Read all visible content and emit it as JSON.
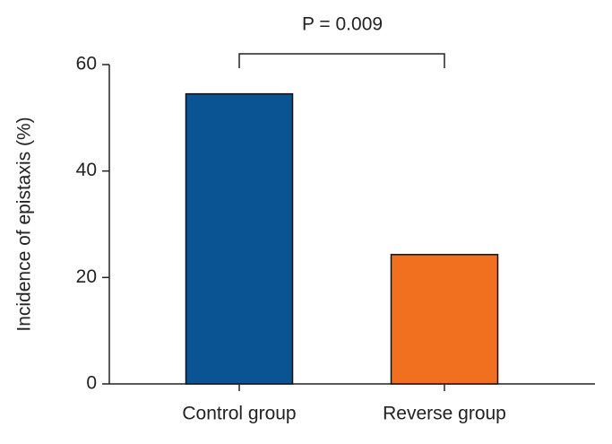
{
  "chart_data": {
    "type": "bar",
    "annotation": "P = 0.009",
    "y_label": "Incidence of epistaxis (%)",
    "categories": [
      "Control group",
      "Reverse group"
    ],
    "values": [
      54.5,
      24.3
    ],
    "colors": [
      "#0a5494",
      "#f07020"
    ],
    "ylim": [
      0,
      60
    ],
    "yticks": [
      0,
      20,
      40,
      60
    ],
    "grid": false
  }
}
